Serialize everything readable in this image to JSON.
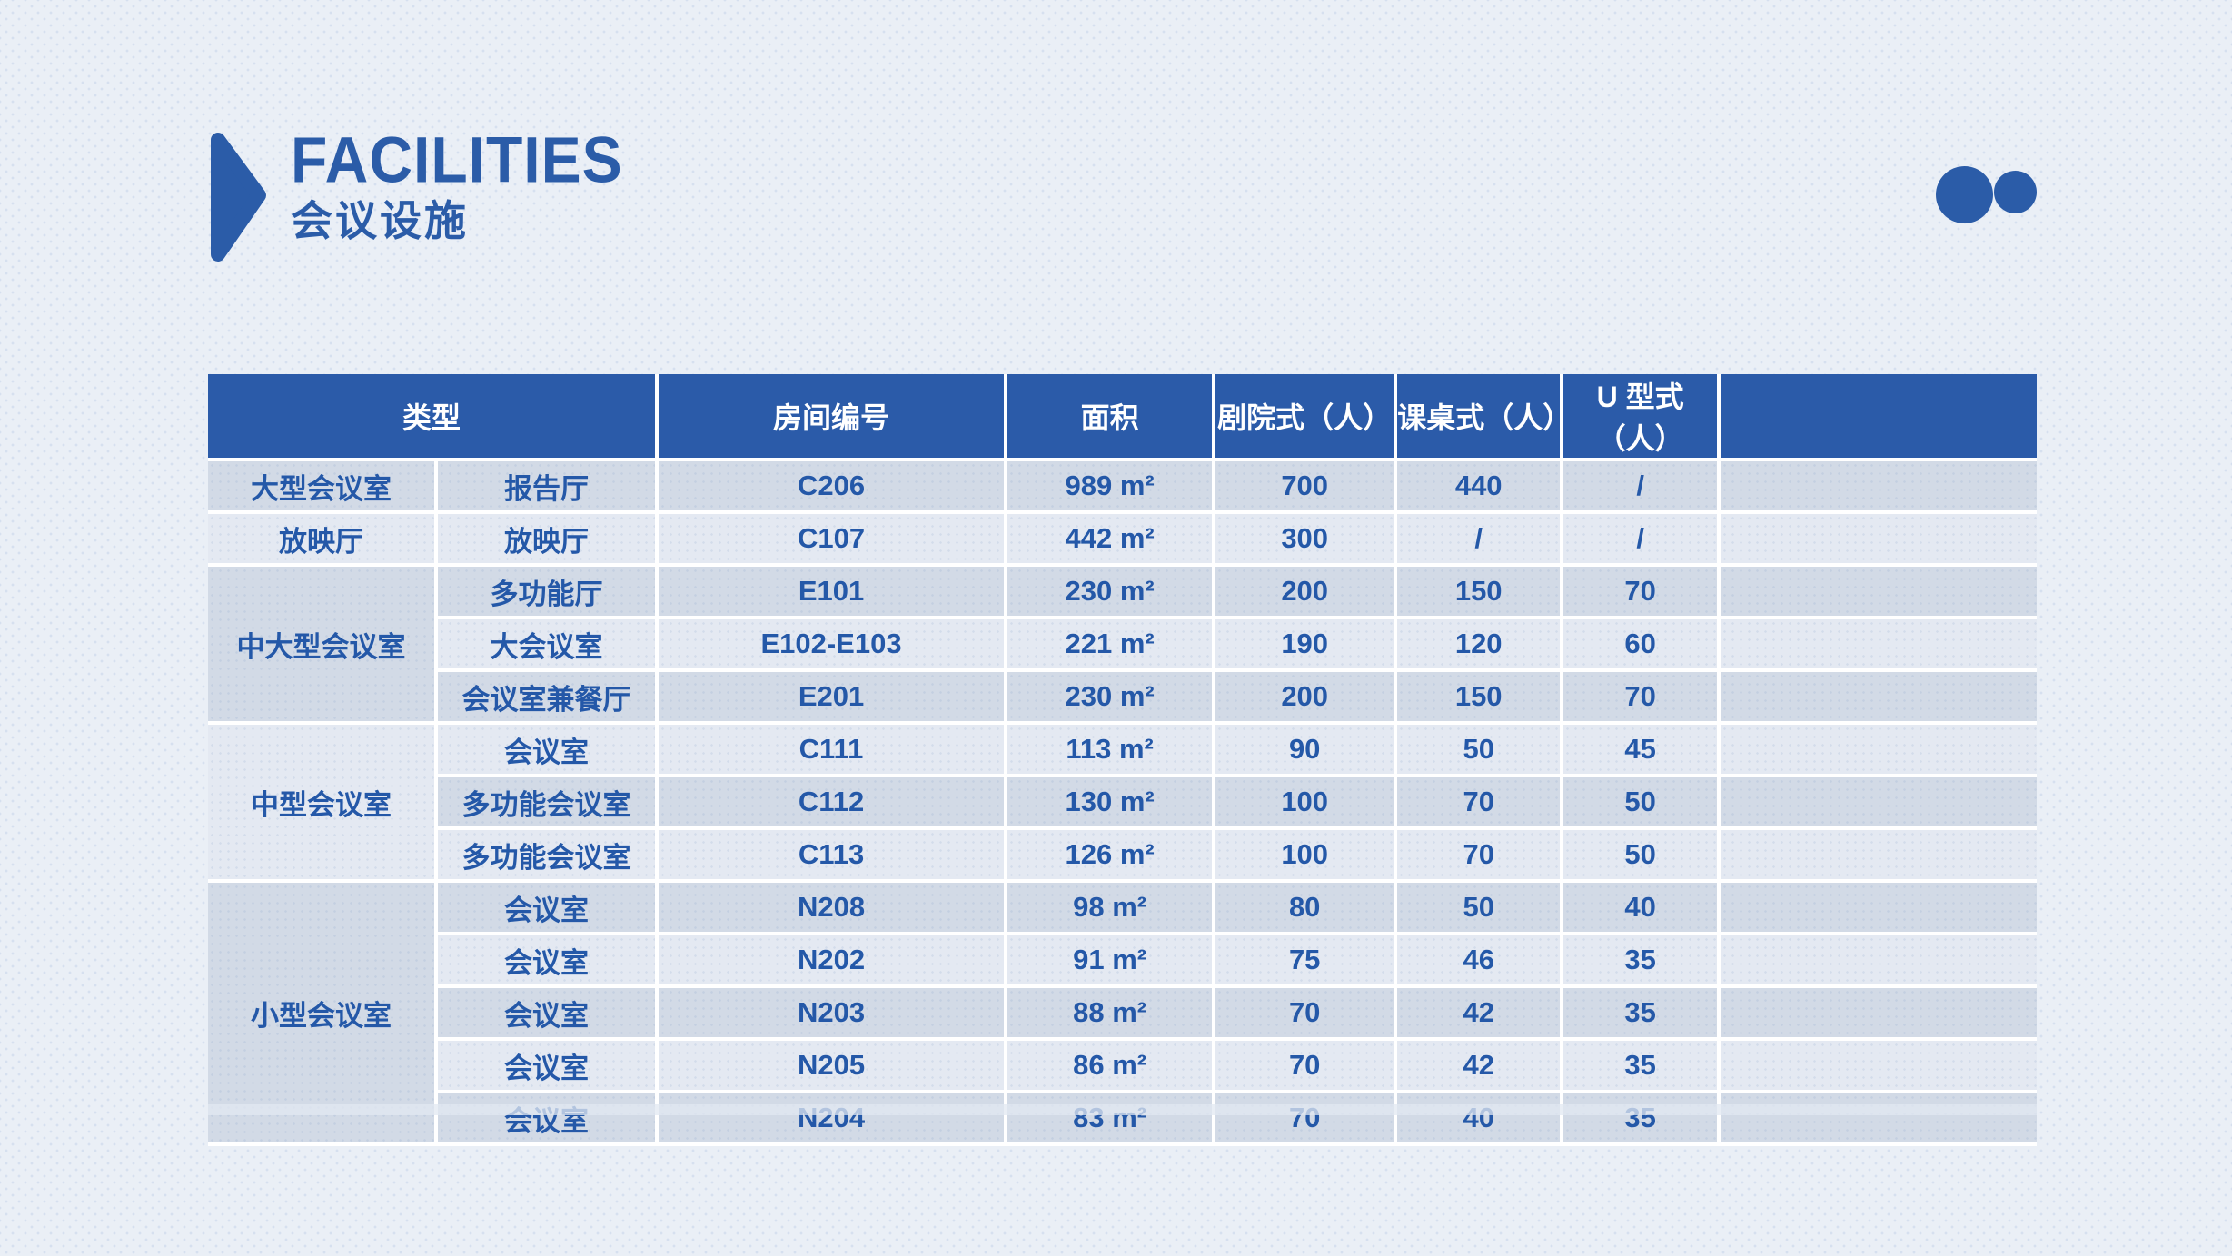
{
  "page": {
    "title_en": "FACILITIES",
    "title_zh": "会议设施"
  },
  "decor": {
    "arrow_icon": "right-arrow-triangle",
    "dots": [
      "large-dot",
      "small-dot"
    ],
    "accent_color": "#2B5CA8"
  },
  "style": {
    "accent_blue": "#2B5CA8",
    "header_bg": "#2B5BA9",
    "row_dark": "#D2DAE6",
    "row_light": "#E4E9F2",
    "cell_text": "#2458A8",
    "page_bg": "#EAEFF6"
  },
  "table": {
    "headers": [
      "类型",
      "房间编号",
      "面积",
      "剧院式（人）",
      "课桌式（人）",
      "U 型式（人）",
      ""
    ],
    "groups": [
      {
        "type": "大型会议室",
        "rows": [
          {
            "name": "报告厅",
            "room": "C206",
            "area": "989 m²",
            "theater": "700",
            "classroom": "440",
            "ushape": "/"
          }
        ]
      },
      {
        "type": "放映厅",
        "rows": [
          {
            "name": "放映厅",
            "room": "C107",
            "area": "442 m²",
            "theater": "300",
            "classroom": "/",
            "ushape": "/"
          }
        ]
      },
      {
        "type": "中大型会议室",
        "rows": [
          {
            "name": "多功能厅",
            "room": "E101",
            "area": "230 m²",
            "theater": "200",
            "classroom": "150",
            "ushape": "70"
          },
          {
            "name": "大会议室",
            "room": "E102-E103",
            "area": "221 m²",
            "theater": "190",
            "classroom": "120",
            "ushape": "60"
          },
          {
            "name": "会议室兼餐厅",
            "room": "E201",
            "area": "230 m²",
            "theater": "200",
            "classroom": "150",
            "ushape": "70"
          }
        ]
      },
      {
        "type": "中型会议室",
        "rows": [
          {
            "name": "会议室",
            "room": "C111",
            "area": "113 m²",
            "theater": "90",
            "classroom": "50",
            "ushape": "45"
          },
          {
            "name": "多功能会议室",
            "room": "C112",
            "area": "130 m²",
            "theater": "100",
            "classroom": "70",
            "ushape": "50"
          },
          {
            "name": "多功能会议室",
            "room": "C113",
            "area": "126 m²",
            "theater": "100",
            "classroom": "70",
            "ushape": "50"
          }
        ]
      },
      {
        "type": "小型会议室",
        "rows": [
          {
            "name": "会议室",
            "room": "N208",
            "area": "98 m²",
            "theater": "80",
            "classroom": "50",
            "ushape": "40"
          },
          {
            "name": "会议室",
            "room": "N202",
            "area": "91 m²",
            "theater": "75",
            "classroom": "46",
            "ushape": "35"
          },
          {
            "name": "会议室",
            "room": "N203",
            "area": "88 m²",
            "theater": "70",
            "classroom": "42",
            "ushape": "35"
          },
          {
            "name": "会议室",
            "room": "N205",
            "area": "86 m²",
            "theater": "70",
            "classroom": "42",
            "ushape": "35"
          },
          {
            "name": "会议室",
            "room": "N204",
            "area": "83 m²",
            "theater": "70",
            "classroom": "40",
            "ushape": "35"
          }
        ]
      }
    ]
  }
}
